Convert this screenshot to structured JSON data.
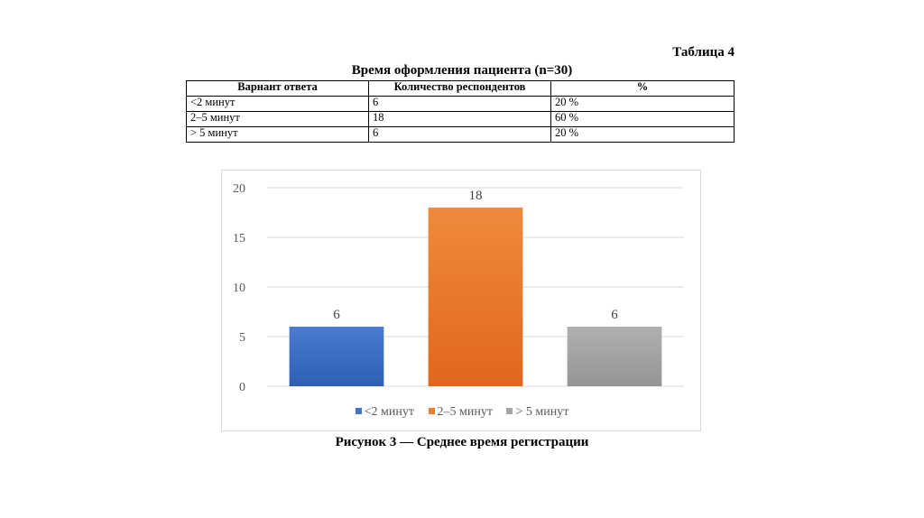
{
  "table": {
    "label": "Таблица 4",
    "title": "Время оформления пациента (n=30)",
    "headers": [
      "Варнант ответа",
      "Количество респондентов",
      "%"
    ],
    "rows": [
      [
        "<2 минут",
        "6",
        "20 %"
      ],
      [
        "2–5 минут",
        "18",
        "60 %"
      ],
      [
        "> 5 минут",
        "6",
        "20 %"
      ]
    ]
  },
  "chart_data": {
    "type": "bar",
    "categories": [
      "<2 минут",
      "2–5 минут",
      "> 5 минут"
    ],
    "values": [
      6,
      18,
      6
    ],
    "data_labels": [
      "6",
      "18",
      "6"
    ],
    "colors": [
      "#4472c4",
      "#ed7d31",
      "#a5a5a5"
    ],
    "ylim": [
      0,
      20
    ],
    "yticks": [
      0,
      5,
      10,
      15,
      20
    ],
    "ytick_labels": [
      "0",
      "5",
      "10",
      "15",
      "20"
    ],
    "grid": true,
    "legend_position": "bottom",
    "title": "",
    "xlabel": "",
    "ylabel": ""
  },
  "caption": "Рисунок 3 — Среднее время регистрации"
}
